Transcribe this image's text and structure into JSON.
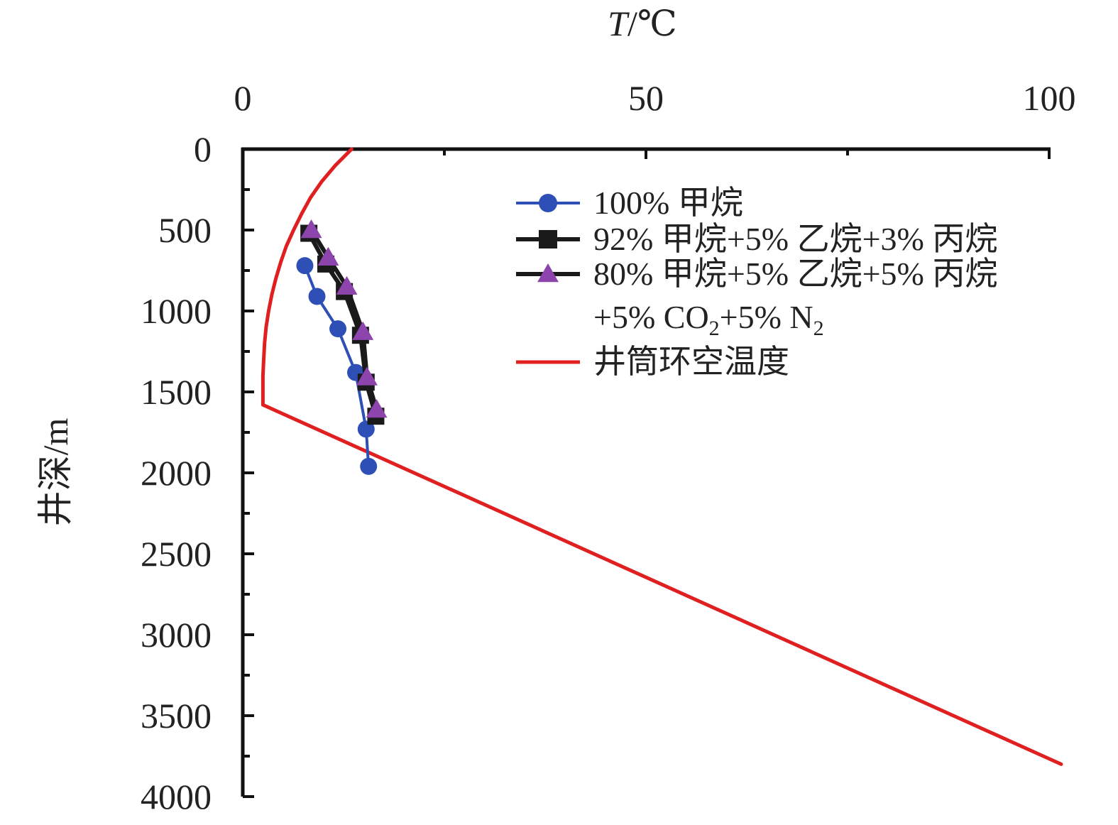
{
  "chart_data": {
    "type": "line",
    "xlabel": "T/℃",
    "ylabel": "井深/m",
    "xlim": [
      0,
      100
    ],
    "ylim": [
      0,
      4000
    ],
    "x_axis_position": "top",
    "y_axis_inverted": true,
    "x_ticks": [
      0,
      50,
      100
    ],
    "y_ticks": [
      0,
      500,
      1000,
      1500,
      2000,
      2500,
      3000,
      3500,
      4000
    ],
    "grid": false,
    "legend_position": "top-right",
    "series": [
      {
        "name": "100% 甲烷",
        "color": "#2e4fb5",
        "marker": "circle",
        "points": [
          [
            7.7,
            720
          ],
          [
            9.2,
            910
          ],
          [
            11.8,
            1110
          ],
          [
            14.0,
            1380
          ],
          [
            15.3,
            1730
          ],
          [
            15.6,
            1960
          ]
        ]
      },
      {
        "name": "92% 甲烷+5% 乙烷+3% 丙烷",
        "color": "#1a1a1a",
        "marker": "square",
        "points": [
          [
            8.2,
            520
          ],
          [
            10.3,
            710
          ],
          [
            12.6,
            880
          ],
          [
            14.6,
            1150
          ],
          [
            15.3,
            1440
          ],
          [
            16.5,
            1650
          ]
        ]
      },
      {
        "name": "80% 甲烷+5% 乙烷+5% 丙烷",
        "name_line2_parts": [
          "+5% CO",
          "2",
          "+5% N",
          "2"
        ],
        "color": "#8e44ad",
        "marker": "triangle",
        "points": [
          [
            8.5,
            500
          ],
          [
            10.6,
            670
          ],
          [
            12.9,
            850
          ],
          [
            14.9,
            1130
          ],
          [
            15.4,
            1410
          ],
          [
            16.6,
            1610
          ]
        ]
      },
      {
        "name": "井筒环空温度",
        "color": "#e02020",
        "marker": "none",
        "points": [
          [
            13.5,
            0
          ],
          [
            11.5,
            100
          ],
          [
            9.8,
            200
          ],
          [
            8.4,
            300
          ],
          [
            7.3,
            400
          ],
          [
            6.3,
            500
          ],
          [
            5.4,
            600
          ],
          [
            4.7,
            700
          ],
          [
            4.1,
            800
          ],
          [
            3.6,
            900
          ],
          [
            3.2,
            1000
          ],
          [
            2.9,
            1100
          ],
          [
            2.7,
            1200
          ],
          [
            2.6,
            1300
          ],
          [
            2.5,
            1400
          ],
          [
            2.5,
            1500
          ],
          [
            2.5,
            1580
          ],
          [
            101.5,
            3800
          ]
        ]
      }
    ]
  }
}
